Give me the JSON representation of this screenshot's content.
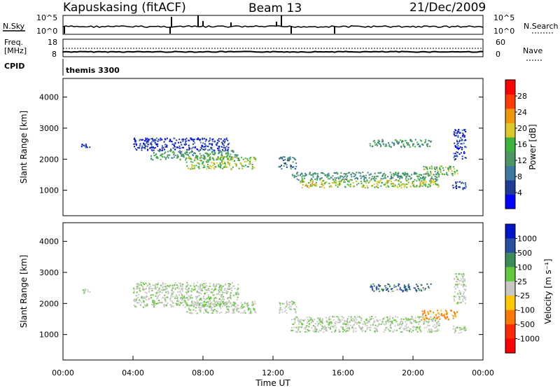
{
  "header": {
    "station": "Kapuskasing (fitACF)",
    "beam": "Beam 13",
    "date": "21/Dec/2009"
  },
  "sky_panel": {
    "left_label": "N.Sky",
    "right_label": "N.Search",
    "left_ticks": [
      "10^5",
      "10^0"
    ],
    "right_ticks": [
      "10^5",
      "10^0"
    ]
  },
  "freq_panel": {
    "left_label_1": "Freq.",
    "left_label_2": "[MHz]",
    "left_ticks": [
      "18",
      "8"
    ],
    "right_label": "Nave",
    "right_ticks": [
      "60",
      "0"
    ]
  },
  "cpid": {
    "label": "CPID",
    "segment_text": "themis 3300"
  },
  "colors": {
    "power_scale": [
      "#0000ff",
      "#1e3c96",
      "#3c78a0",
      "#4b9664",
      "#3cb43c",
      "#dcc828",
      "#f0960a",
      "#ff3c00",
      "#ff0000"
    ],
    "velocity_ground": "#c8c8c3",
    "velocity_scale": [
      "#0014c8",
      "#2850a0",
      "#3c8c5a",
      "#64c83c",
      "#c8c8c3",
      "#ffc800",
      "#ff7800",
      "#ff2800",
      "#ff0000"
    ]
  },
  "chart_data": [
    {
      "type": "heatmap",
      "name": "power",
      "ylabel": "Slant Range [km]",
      "colorbar_label": "Power [dB]",
      "colorbar_ticks": [
        "28",
        "24",
        "20",
        "16",
        "12",
        "8",
        "4"
      ],
      "colorbar_range": [
        0,
        32
      ],
      "x_range_hours": [
        0,
        24
      ],
      "y_range_km": [
        180,
        4600
      ],
      "y_ticks": [
        "1000",
        "2000",
        "3000",
        "4000"
      ],
      "bands": [
        {
          "x": [
            1.0,
            1.6
          ],
          "y": [
            2350,
            2500
          ],
          "value": 5
        },
        {
          "x": [
            4.0,
            9.5
          ],
          "y": [
            2300,
            2700
          ],
          "value": 5
        },
        {
          "x": [
            5.0,
            10.0
          ],
          "y": [
            2000,
            2300
          ],
          "value": 15
        },
        {
          "x": [
            7.0,
            11.0
          ],
          "y": [
            1700,
            2100
          ],
          "value": 19
        },
        {
          "x": [
            12.3,
            13.3
          ],
          "y": [
            1700,
            2100
          ],
          "value": 10
        },
        {
          "x": [
            13.0,
            21.5
          ],
          "y": [
            1350,
            1600
          ],
          "value": 13
        },
        {
          "x": [
            13.5,
            21.5
          ],
          "y": [
            1100,
            1350
          ],
          "value": 20
        },
        {
          "x": [
            17.5,
            21.0
          ],
          "y": [
            2400,
            2650
          ],
          "value": 14
        },
        {
          "x": [
            20.5,
            22.5
          ],
          "y": [
            1500,
            1800
          ],
          "value": 17
        },
        {
          "x": [
            22.2,
            23.0
          ],
          "y": [
            1050,
            1300
          ],
          "value": 6
        },
        {
          "x": [
            22.3,
            23.0
          ],
          "y": [
            2000,
            3000
          ],
          "value": 5
        }
      ]
    },
    {
      "type": "heatmap",
      "name": "velocity",
      "ylabel": "Slant Range [km]",
      "colorbar_label": "Velocity [m s⁻¹]",
      "colorbar_ticks": [
        "1000",
        "500",
        "100",
        "25",
        "-25",
        "-100",
        "-500",
        "-1000"
      ],
      "x_range_hours": [
        0,
        24
      ],
      "y_range_km": [
        180,
        4600
      ],
      "y_ticks": [
        "1000",
        "2000",
        "3000",
        "4000"
      ],
      "xlabel": "Time UT",
      "x_ticks": [
        "00:00",
        "04:00",
        "08:00",
        "12:00",
        "16:00",
        "20:00",
        "00:00"
      ],
      "bands": [
        {
          "x": [
            1.0,
            1.6
          ],
          "y": [
            2350,
            2500
          ],
          "value": 0
        },
        {
          "x": [
            4.0,
            10.0
          ],
          "y": [
            1900,
            2700
          ],
          "value": 0
        },
        {
          "x": [
            7.0,
            11.0
          ],
          "y": [
            1700,
            2100
          ],
          "value": 0
        },
        {
          "x": [
            12.3,
            13.3
          ],
          "y": [
            1700,
            2100
          ],
          "value": 0
        },
        {
          "x": [
            13.0,
            21.5
          ],
          "y": [
            1100,
            1600
          ],
          "value": 0
        },
        {
          "x": [
            17.5,
            21.0
          ],
          "y": [
            2400,
            2650
          ],
          "value": 150
        },
        {
          "x": [
            20.5,
            22.5
          ],
          "y": [
            1500,
            1800
          ],
          "value": -150
        },
        {
          "x": [
            22.2,
            23.0
          ],
          "y": [
            1050,
            1300
          ],
          "value": 0
        },
        {
          "x": [
            22.3,
            23.0
          ],
          "y": [
            2000,
            3000
          ],
          "value": 0
        }
      ]
    }
  ]
}
